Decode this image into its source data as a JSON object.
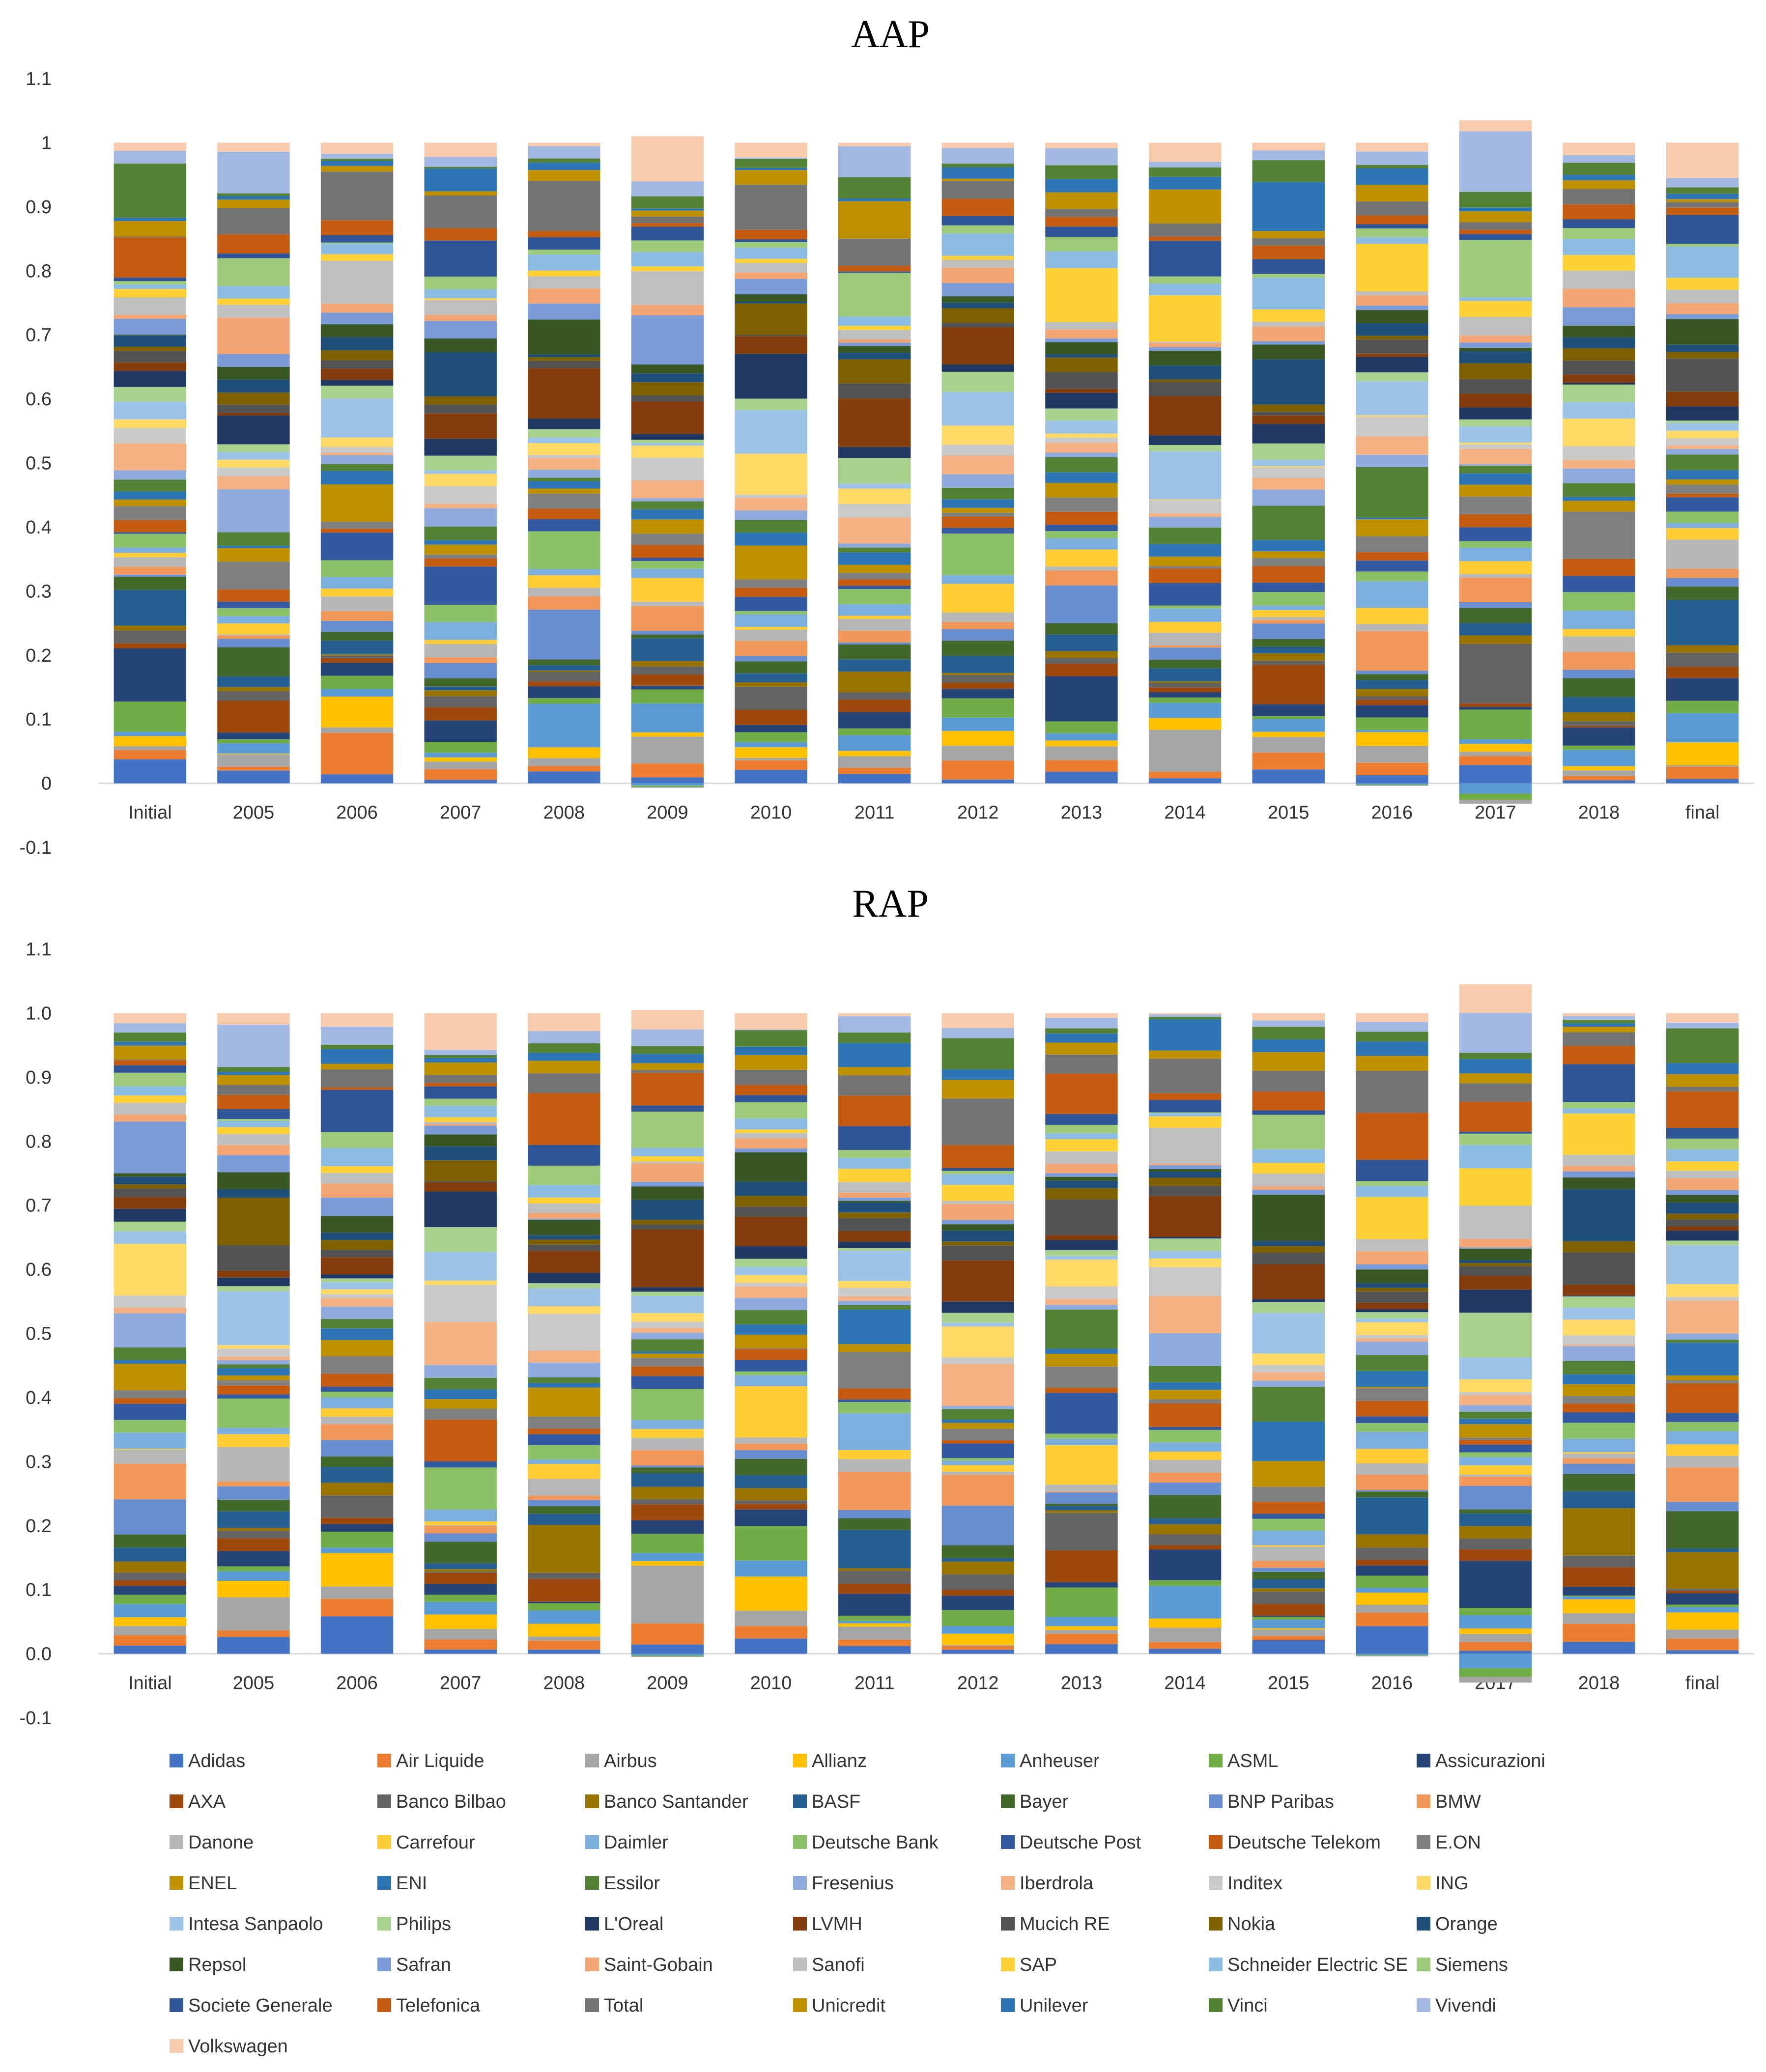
{
  "chart_data": [
    {
      "type": "bar",
      "stacked": true,
      "title": "AAP",
      "categories": [
        "Initial",
        "2005",
        "2006",
        "2007",
        "2008",
        "2009",
        "2010",
        "2011",
        "2012",
        "2013",
        "2014",
        "2015",
        "2016",
        "2017",
        "2018",
        "final"
      ],
      "ylim": [
        -0.1,
        1.1
      ],
      "yticks": [
        "-0.1",
        "0",
        "0.1",
        "0.2",
        "0.3",
        "0.4",
        "0.5",
        "0.6",
        "0.7",
        "0.8",
        "0.9",
        "1",
        "1.1"
      ],
      "ytick_values": [
        -0.1,
        0,
        0.1,
        0.2,
        0.3,
        0.4,
        0.5,
        0.6,
        0.7,
        0.8,
        0.9,
        1.0,
        1.1
      ],
      "grid": false,
      "legend": "bottom",
      "series_ref": "legend.items",
      "column_totals": [
        1.0,
        1.0,
        1.0,
        1.0,
        1.0,
        1.01,
        1.0,
        1.0,
        1.0,
        1.0,
        1.0,
        1.0,
        1.0,
        1.035,
        1.0,
        1.0
      ],
      "negative_bottoms": [
        0,
        0,
        0,
        0,
        0,
        -0.007,
        0,
        0,
        0,
        0,
        0,
        0,
        -0.004,
        -0.032,
        0,
        0
      ]
    },
    {
      "type": "bar",
      "stacked": true,
      "title": "RAP",
      "categories": [
        "Initial",
        "2005",
        "2006",
        "2007",
        "2008",
        "2009",
        "2010",
        "2011",
        "2012",
        "2013",
        "2014",
        "2015",
        "2016",
        "2017",
        "2018",
        "final"
      ],
      "ylim": [
        -0.1,
        1.1
      ],
      "yticks": [
        "-0.1",
        "0.0",
        "0.1",
        "0.2",
        "0.3",
        "0.4",
        "0.5",
        "0.6",
        "0.7",
        "0.8",
        "0.9",
        "1.0",
        "1.1"
      ],
      "ytick_values": [
        -0.1,
        0,
        0.1,
        0.2,
        0.3,
        0.4,
        0.5,
        0.6,
        0.7,
        0.8,
        0.9,
        1.0,
        1.1
      ],
      "grid": false,
      "legend": "bottom",
      "series_ref": "legend.items",
      "column_totals": [
        1.0,
        1.0,
        1.0,
        1.0,
        1.0,
        1.005,
        1.0,
        1.0,
        1.0,
        1.0,
        1.0,
        1.0,
        1.0,
        1.045,
        1.0,
        1.0
      ],
      "negative_bottoms": [
        0,
        0,
        0,
        0,
        0,
        -0.005,
        0,
        0,
        0,
        0,
        0,
        0,
        -0.004,
        -0.045,
        0,
        0
      ]
    }
  ],
  "legend": {
    "items": [
      {
        "name": "Adidas",
        "color": "#4472C4"
      },
      {
        "name": "Air Liquide",
        "color": "#ED7D31"
      },
      {
        "name": "Airbus",
        "color": "#A5A5A5"
      },
      {
        "name": "Allianz",
        "color": "#FFC000"
      },
      {
        "name": "Anheuser",
        "color": "#5B9BD5"
      },
      {
        "name": "ASML",
        "color": "#70AD47"
      },
      {
        "name": "Assicurazioni",
        "color": "#264478"
      },
      {
        "name": "AXA",
        "color": "#9E480E"
      },
      {
        "name": "Banco Bilbao",
        "color": "#636363"
      },
      {
        "name": "Banco Santander",
        "color": "#997300"
      },
      {
        "name": "BASF",
        "color": "#255E91"
      },
      {
        "name": "Bayer",
        "color": "#43682B"
      },
      {
        "name": "BNP Paribas",
        "color": "#698ED0"
      },
      {
        "name": "BMW",
        "color": "#F1975A"
      },
      {
        "name": "Danone",
        "color": "#B7B7B7"
      },
      {
        "name": "Carrefour",
        "color": "#FFCD33"
      },
      {
        "name": "Daimler",
        "color": "#7CAFDD"
      },
      {
        "name": "Deutsche Bank",
        "color": "#8CC168"
      },
      {
        "name": "Deutsche Post",
        "color": "#335AA1"
      },
      {
        "name": "Deutsche Telekom",
        "color": "#C55A11"
      },
      {
        "name": "E.ON",
        "color": "#7F7F7F"
      },
      {
        "name": "ENEL",
        "color": "#BF9000"
      },
      {
        "name": "ENI",
        "color": "#2E75B6"
      },
      {
        "name": "Essilor",
        "color": "#548235"
      },
      {
        "name": "Fresenius",
        "color": "#8FAADC"
      },
      {
        "name": "Iberdrola",
        "color": "#F4B183"
      },
      {
        "name": "Inditex",
        "color": "#C9C9C9"
      },
      {
        "name": "ING",
        "color": "#FFD966"
      },
      {
        "name": "Intesa Sanpaolo",
        "color": "#9DC3E6"
      },
      {
        "name": "Philips",
        "color": "#A9D18E"
      },
      {
        "name": "L'Oreal",
        "color": "#1F3864"
      },
      {
        "name": "LVMH",
        "color": "#843C0C"
      },
      {
        "name": "Mucich RE",
        "color": "#525252"
      },
      {
        "name": "Nokia",
        "color": "#7F6000"
      },
      {
        "name": "Orange",
        "color": "#1F4E79"
      },
      {
        "name": "Repsol",
        "color": "#385723"
      },
      {
        "name": "Safran",
        "color": "#7B9BD8"
      },
      {
        "name": "Saint-Gobain",
        "color": "#F4A574"
      },
      {
        "name": "Sanofi",
        "color": "#BFBFBF"
      },
      {
        "name": "SAP",
        "color": "#FFD134"
      },
      {
        "name": "Schneider Electric SE",
        "color": "#8DBCE3"
      },
      {
        "name": "Siemens",
        "color": "#9DCB7A"
      },
      {
        "name": "Societe Generale",
        "color": "#2F5597"
      },
      {
        "name": "Telefonica",
        "color": "#C55A11"
      },
      {
        "name": "Total",
        "color": "#737373"
      },
      {
        "name": "Unicredit",
        "color": "#BF9000"
      },
      {
        "name": "Unilever",
        "color": "#2E75B6"
      },
      {
        "name": "Vinci",
        "color": "#548235"
      },
      {
        "name": "Vivendi",
        "color": "#A4B8E4"
      },
      {
        "name": "Volkswagen",
        "color": "#F8CBAD"
      }
    ]
  }
}
